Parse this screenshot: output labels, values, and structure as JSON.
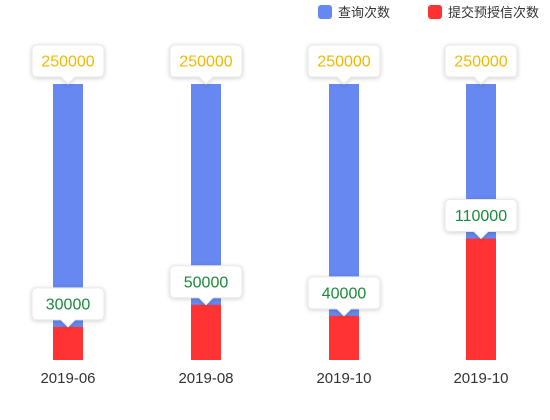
{
  "chart_data": {
    "type": "bar",
    "stacked": false,
    "categories": [
      "2019-06",
      "2019-08",
      "2019-10",
      "2019-10"
    ],
    "series": [
      {
        "name": "查询次数",
        "color": "#6688f0",
        "values": [
          250000,
          250000,
          250000,
          250000
        ],
        "label_color": "#f5b800"
      },
      {
        "name": "提交预授信次数",
        "color": "#ff3333",
        "values": [
          30000,
          50000,
          40000,
          110000
        ],
        "label_color": "#1a8a3a"
      }
    ],
    "ylim": [
      0,
      250000
    ],
    "grid": false,
    "legend_position": "top-right",
    "xlabel": "",
    "ylabel": ""
  }
}
